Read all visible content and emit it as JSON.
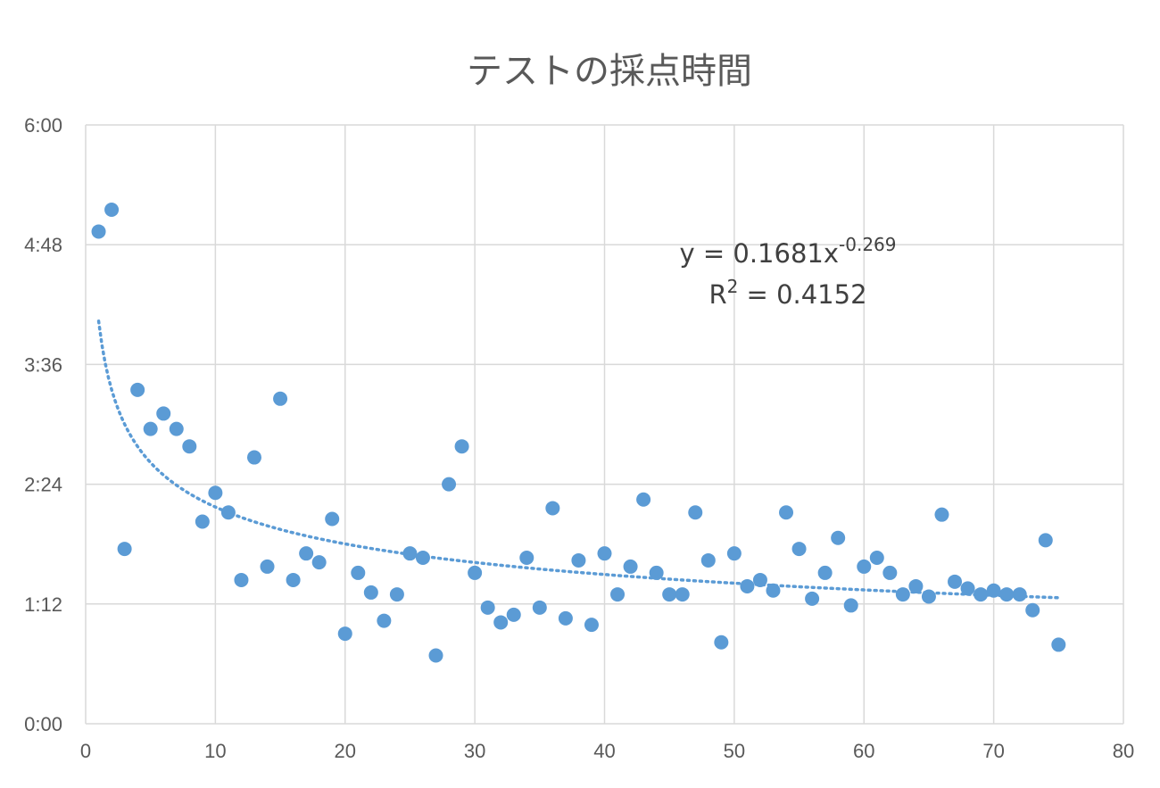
{
  "chart_data": {
    "type": "scatter",
    "title": "テストの採点時間",
    "xlabel": "",
    "ylabel": "",
    "xlim": [
      0,
      80
    ],
    "ylim": [
      0,
      0.25
    ],
    "x_ticks": [
      0,
      10,
      20,
      30,
      40,
      50,
      60,
      70,
      80
    ],
    "x_tick_labels": [
      "0",
      "10",
      "20",
      "30",
      "40",
      "50",
      "60",
      "70",
      "80"
    ],
    "y_ticks": [
      0,
      0.05,
      0.1,
      0.15,
      0.2,
      0.25
    ],
    "y_tick_labels": [
      "0:00",
      "1:12",
      "2:24",
      "3:36",
      "4:48",
      "6:00"
    ],
    "grid": true,
    "legend": "none",
    "marker_color": "#5b9bd5",
    "trendline": {
      "type": "power",
      "coefficient": 0.1681,
      "exponent": -0.269,
      "x_range": [
        1,
        75
      ],
      "style": "dotted",
      "color": "#5b9bd5"
    },
    "equation": {
      "line1_prefix": "y = 0.1681x",
      "line1_exponent": "-0.269",
      "line2_prefix": "R",
      "line2_superscript": "2",
      "line2_suffix": " = 0.4152"
    },
    "points": [
      {
        "x": 1,
        "y": 0.2055
      },
      {
        "x": 2,
        "y": 0.2146
      },
      {
        "x": 3,
        "y": 0.073
      },
      {
        "x": 4,
        "y": 0.1394
      },
      {
        "x": 5,
        "y": 0.1231
      },
      {
        "x": 6,
        "y": 0.1295
      },
      {
        "x": 7,
        "y": 0.1231
      },
      {
        "x": 8,
        "y": 0.1158
      },
      {
        "x": 9,
        "y": 0.0844
      },
      {
        "x": 10,
        "y": 0.0964
      },
      {
        "x": 11,
        "y": 0.0882
      },
      {
        "x": 12,
        "y": 0.06
      },
      {
        "x": 13,
        "y": 0.1112
      },
      {
        "x": 14,
        "y": 0.0656
      },
      {
        "x": 15,
        "y": 0.1357
      },
      {
        "x": 16,
        "y": 0.06
      },
      {
        "x": 17,
        "y": 0.0711
      },
      {
        "x": 18,
        "y": 0.0674
      },
      {
        "x": 19,
        "y": 0.0855
      },
      {
        "x": 20,
        "y": 0.0376
      },
      {
        "x": 21,
        "y": 0.063
      },
      {
        "x": 22,
        "y": 0.0548
      },
      {
        "x": 23,
        "y": 0.043
      },
      {
        "x": 24,
        "y": 0.054
      },
      {
        "x": 25,
        "y": 0.0711
      },
      {
        "x": 26,
        "y": 0.0693
      },
      {
        "x": 27,
        "y": 0.0285
      },
      {
        "x": 28,
        "y": 0.1
      },
      {
        "x": 29,
        "y": 0.1158
      },
      {
        "x": 30,
        "y": 0.063
      },
      {
        "x": 31,
        "y": 0.0485
      },
      {
        "x": 32,
        "y": 0.0423
      },
      {
        "x": 33,
        "y": 0.0455
      },
      {
        "x": 34,
        "y": 0.0693
      },
      {
        "x": 35,
        "y": 0.0485
      },
      {
        "x": 36,
        "y": 0.09
      },
      {
        "x": 37,
        "y": 0.044
      },
      {
        "x": 38,
        "y": 0.0682
      },
      {
        "x": 39,
        "y": 0.0413
      },
      {
        "x": 40,
        "y": 0.0711
      },
      {
        "x": 41,
        "y": 0.054
      },
      {
        "x": 42,
        "y": 0.0656
      },
      {
        "x": 43,
        "y": 0.0936
      },
      {
        "x": 44,
        "y": 0.063
      },
      {
        "x": 45,
        "y": 0.054
      },
      {
        "x": 46,
        "y": 0.054
      },
      {
        "x": 47,
        "y": 0.0882
      },
      {
        "x": 48,
        "y": 0.0682
      },
      {
        "x": 49,
        "y": 0.034
      },
      {
        "x": 50,
        "y": 0.0711
      },
      {
        "x": 51,
        "y": 0.0574
      },
      {
        "x": 52,
        "y": 0.06
      },
      {
        "x": 53,
        "y": 0.0556
      },
      {
        "x": 54,
        "y": 0.0882
      },
      {
        "x": 55,
        "y": 0.073
      },
      {
        "x": 56,
        "y": 0.0522
      },
      {
        "x": 57,
        "y": 0.063
      },
      {
        "x": 58,
        "y": 0.0776
      },
      {
        "x": 59,
        "y": 0.0494
      },
      {
        "x": 60,
        "y": 0.0656
      },
      {
        "x": 61,
        "y": 0.0693
      },
      {
        "x": 62,
        "y": 0.063
      },
      {
        "x": 63,
        "y": 0.054
      },
      {
        "x": 64,
        "y": 0.0574
      },
      {
        "x": 65,
        "y": 0.0531
      },
      {
        "x": 66,
        "y": 0.0873
      },
      {
        "x": 67,
        "y": 0.0593
      },
      {
        "x": 68,
        "y": 0.0565
      },
      {
        "x": 69,
        "y": 0.054
      },
      {
        "x": 70,
        "y": 0.0556
      },
      {
        "x": 71,
        "y": 0.054
      },
      {
        "x": 72,
        "y": 0.054
      },
      {
        "x": 73,
        "y": 0.0474
      },
      {
        "x": 74,
        "y": 0.0766
      },
      {
        "x": 75,
        "y": 0.033
      }
    ]
  }
}
